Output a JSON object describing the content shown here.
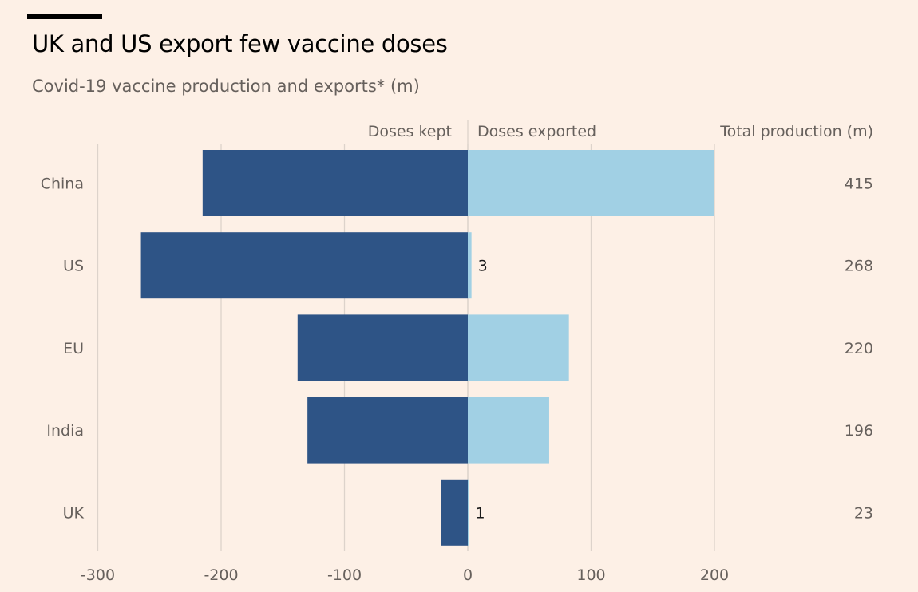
{
  "header": {
    "title": "UK and US export few vaccine doses",
    "subtitle": "Covid-19 vaccine production and exports* (m)"
  },
  "colors": {
    "background": "#fdf0e6",
    "doses_kept": "#2e5486",
    "doses_exported": "#a1d0e4",
    "gridline": "#ddd3cb",
    "text_muted": "#66605c"
  },
  "chart_data": {
    "type": "bar",
    "orientation": "horizontal-diverging",
    "title": "UK and US export few vaccine doses",
    "subtitle": "Covid-19 vaccine production and exports* (m)",
    "categories": [
      "China",
      "US",
      "EU",
      "India",
      "UK"
    ],
    "series": [
      {
        "name": "Doses kept",
        "values": [
          215,
          265,
          138,
          130,
          22
        ],
        "direction": "negative"
      },
      {
        "name": "Doses exported",
        "values": [
          200,
          3,
          82,
          66,
          1
        ],
        "direction": "positive"
      }
    ],
    "total_production_header": "Total production (m)",
    "total_production": [
      415,
      268,
      220,
      196,
      23
    ],
    "data_labels": [
      {
        "category": "US",
        "series": "Doses exported",
        "text": "3"
      },
      {
        "category": "UK",
        "series": "Doses exported",
        "text": "1"
      }
    ],
    "xticks": [
      -300,
      -200,
      -100,
      0,
      100,
      200
    ],
    "xtick_labels": [
      "-300",
      "-200",
      "-100",
      "0",
      "100",
      "200"
    ],
    "xlim": [
      -300,
      200
    ],
    "grid": true,
    "legend_placement": "top, inline column headers"
  }
}
